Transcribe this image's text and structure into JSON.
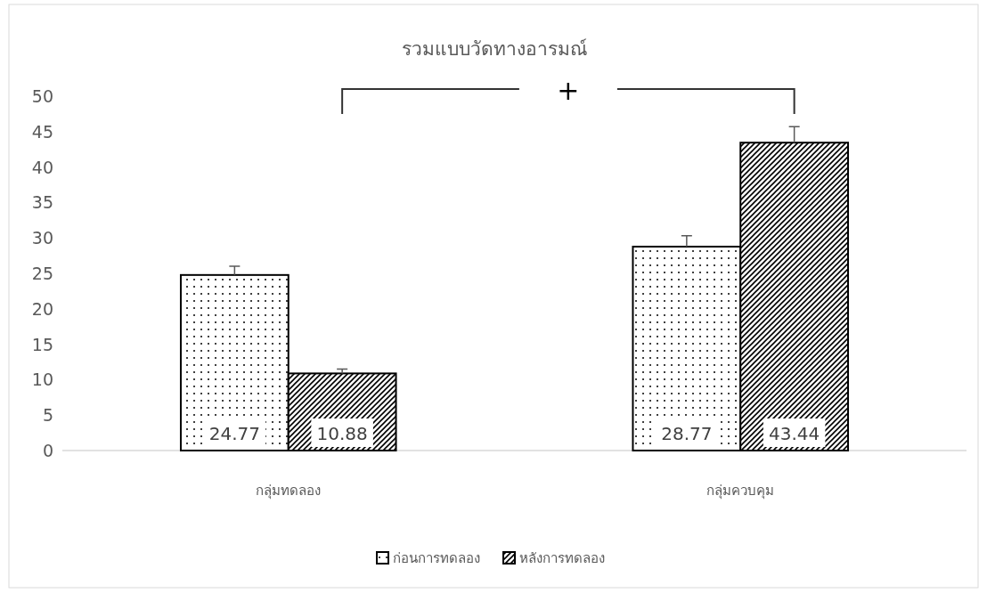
{
  "chart_data": {
    "type": "bar",
    "title": "รวมแบบวัดทางอารมณ์",
    "categories": [
      "กลุ่มทดลอง",
      "กลุ่มควบคุม"
    ],
    "series": [
      {
        "name": "ก่อนการทดลอง",
        "values": [
          24.77,
          28.77
        ],
        "errors": [
          [
            24.77,
            26.0
          ],
          [
            28.77,
            30.3
          ]
        ]
      },
      {
        "name": "หลังการทดลอง",
        "values": [
          10.88,
          43.44
        ],
        "errors": [
          [
            10.88,
            11.5
          ],
          [
            43.44,
            45.7
          ]
        ]
      }
    ],
    "ylim": [
      0,
      50
    ],
    "yticks": [
      0,
      5,
      10,
      15,
      20,
      25,
      30,
      35,
      40,
      45,
      50
    ],
    "grid": false,
    "legend": "bottom",
    "data_labels": true,
    "annotations": [
      "+"
    ]
  }
}
